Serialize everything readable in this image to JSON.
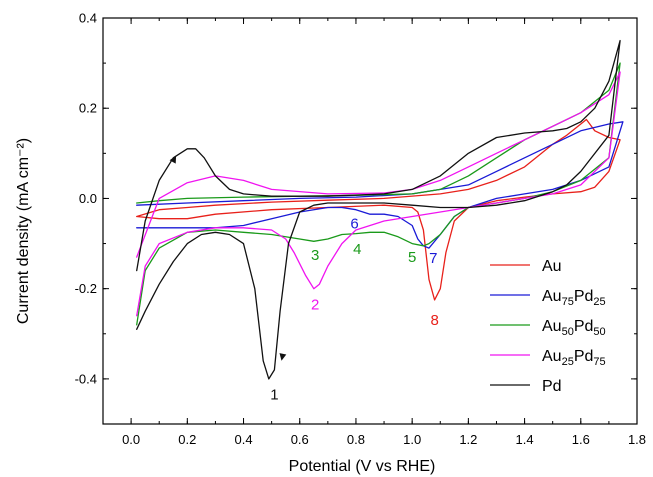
{
  "chart_data": {
    "type": "line",
    "xlabel": "Potential (V vs RHE)",
    "ylabel": "Current density (mA cm⁻²)",
    "xlim": [
      -0.1,
      1.8
    ],
    "ylim": [
      -0.5,
      0.4
    ],
    "xticks": [
      0.0,
      0.2,
      0.4,
      0.6,
      0.8,
      1.0,
      1.2,
      1.4,
      1.6,
      1.8
    ],
    "xtick_labels": [
      "0.0",
      "0.2",
      "0.4",
      "0.6",
      "0.8",
      "1.0",
      "1.2",
      "1.4",
      "1.6",
      "1.8"
    ],
    "yticks": [
      -0.4,
      -0.2,
      0.0,
      0.2,
      0.4
    ],
    "ytick_labels": [
      "-0.4",
      "-0.2",
      "0.0",
      "0.2",
      "0.4"
    ],
    "grid": false,
    "legend_position": "lower-right",
    "series": [
      {
        "name": "Au",
        "legend_base": "Au",
        "legend_sub1": "",
        "legend_mid": "",
        "legend_sub2": "",
        "color": "#e8211b",
        "x": [
          0.02,
          0.1,
          0.2,
          0.3,
          0.5,
          0.7,
          0.9,
          1.1,
          1.2,
          1.3,
          1.4,
          1.5,
          1.55,
          1.6,
          1.62,
          1.65,
          1.7,
          1.74,
          1.74,
          1.7,
          1.65,
          1.6,
          1.5,
          1.4,
          1.3,
          1.2,
          1.15,
          1.12,
          1.1,
          1.08,
          1.06,
          1.04,
          1.02,
          1.0,
          0.9,
          0.7,
          0.5,
          0.3,
          0.2,
          0.1,
          0.02
        ],
        "y": [
          -0.04,
          -0.025,
          -0.02,
          -0.015,
          -0.008,
          -0.004,
          0.0,
          0.01,
          0.02,
          0.04,
          0.07,
          0.12,
          0.14,
          0.165,
          0.175,
          0.15,
          0.135,
          0.13,
          0.13,
          0.06,
          0.025,
          0.015,
          0.01,
          0.003,
          -0.005,
          -0.02,
          -0.05,
          -0.12,
          -0.2,
          -0.225,
          -0.18,
          -0.07,
          -0.03,
          -0.02,
          -0.015,
          -0.02,
          -0.025,
          -0.035,
          -0.045,
          -0.045,
          -0.04
        ]
      },
      {
        "name": "Au75Pd25",
        "legend_base": "Au",
        "legend_sub1": "75",
        "legend_mid": "Pd",
        "legend_sub2": "25",
        "color": "#1a1ad6",
        "x": [
          0.02,
          0.2,
          0.4,
          0.6,
          0.8,
          1.0,
          1.2,
          1.3,
          1.4,
          1.5,
          1.6,
          1.7,
          1.75,
          1.75,
          1.7,
          1.6,
          1.5,
          1.4,
          1.3,
          1.2,
          1.15,
          1.1,
          1.06,
          1.04,
          1.02,
          1.0,
          0.95,
          0.9,
          0.85,
          0.8,
          0.75,
          0.7,
          0.6,
          0.5,
          0.4,
          0.3,
          0.2,
          0.1,
          0.02
        ],
        "y": [
          -0.015,
          -0.01,
          -0.005,
          0.0,
          0.003,
          0.01,
          0.03,
          0.06,
          0.09,
          0.12,
          0.15,
          0.165,
          0.17,
          0.17,
          0.07,
          0.04,
          0.02,
          0.01,
          0.0,
          -0.02,
          -0.04,
          -0.08,
          -0.11,
          -0.105,
          -0.09,
          -0.06,
          -0.04,
          -0.035,
          -0.035,
          -0.025,
          -0.02,
          -0.02,
          -0.03,
          -0.045,
          -0.06,
          -0.065,
          -0.065,
          -0.065,
          -0.065
        ]
      },
      {
        "name": "Au50Pd50",
        "legend_base": "Au",
        "legend_sub1": "50",
        "legend_mid": "Pd",
        "legend_sub2": "50",
        "color": "#1a9a1a",
        "x": [
          0.02,
          0.1,
          0.2,
          0.4,
          0.6,
          0.8,
          1.0,
          1.1,
          1.2,
          1.3,
          1.4,
          1.5,
          1.6,
          1.7,
          1.74,
          1.74,
          1.7,
          1.6,
          1.5,
          1.4,
          1.3,
          1.2,
          1.15,
          1.1,
          1.06,
          1.04,
          1.0,
          0.95,
          0.9,
          0.85,
          0.8,
          0.75,
          0.7,
          0.65,
          0.6,
          0.5,
          0.4,
          0.3,
          0.2,
          0.1,
          0.05,
          0.02
        ],
        "y": [
          -0.01,
          -0.005,
          0.0,
          0.003,
          0.005,
          0.007,
          0.01,
          0.02,
          0.05,
          0.09,
          0.13,
          0.16,
          0.19,
          0.24,
          0.3,
          0.3,
          0.09,
          0.04,
          0.015,
          0.0,
          -0.01,
          -0.02,
          -0.04,
          -0.08,
          -0.1,
          -0.105,
          -0.1,
          -0.085,
          -0.075,
          -0.075,
          -0.078,
          -0.08,
          -0.09,
          -0.095,
          -0.09,
          -0.08,
          -0.075,
          -0.07,
          -0.075,
          -0.11,
          -0.16,
          -0.28
        ]
      },
      {
        "name": "Au25Pd75",
        "legend_base": "Au",
        "legend_sub1": "25",
        "legend_mid": "Pd",
        "legend_sub2": "75",
        "color": "#f014f0",
        "x": [
          0.02,
          0.1,
          0.2,
          0.3,
          0.4,
          0.5,
          0.7,
          0.9,
          1.0,
          1.1,
          1.2,
          1.3,
          1.4,
          1.5,
          1.6,
          1.7,
          1.74,
          1.74,
          1.7,
          1.6,
          1.5,
          1.4,
          1.3,
          1.2,
          1.1,
          1.0,
          0.9,
          0.8,
          0.75,
          0.7,
          0.67,
          0.65,
          0.62,
          0.58,
          0.55,
          0.5,
          0.4,
          0.3,
          0.2,
          0.1,
          0.05,
          0.02
        ],
        "y": [
          -0.13,
          0.0,
          0.035,
          0.05,
          0.04,
          0.02,
          0.01,
          0.012,
          0.02,
          0.04,
          0.07,
          0.1,
          0.13,
          0.16,
          0.19,
          0.23,
          0.28,
          0.28,
          0.09,
          0.03,
          0.01,
          0.0,
          -0.01,
          -0.02,
          -0.03,
          -0.04,
          -0.05,
          -0.07,
          -0.1,
          -0.15,
          -0.19,
          -0.2,
          -0.17,
          -0.12,
          -0.09,
          -0.07,
          -0.065,
          -0.065,
          -0.075,
          -0.1,
          -0.15,
          -0.26
        ]
      },
      {
        "name": "Pd",
        "legend_base": "Pd",
        "legend_sub1": "",
        "legend_mid": "",
        "legend_sub2": "",
        "color": "#111111",
        "x": [
          0.02,
          0.05,
          0.1,
          0.15,
          0.2,
          0.23,
          0.26,
          0.3,
          0.35,
          0.4,
          0.5,
          0.7,
          0.9,
          1.0,
          1.1,
          1.2,
          1.3,
          1.4,
          1.5,
          1.55,
          1.6,
          1.65,
          1.7,
          1.74,
          1.74,
          1.7,
          1.6,
          1.55,
          1.5,
          1.4,
          1.3,
          1.2,
          1.1,
          1.0,
          0.9,
          0.8,
          0.7,
          0.65,
          0.6,
          0.56,
          0.53,
          0.51,
          0.49,
          0.47,
          0.44,
          0.4,
          0.35,
          0.3,
          0.25,
          0.2,
          0.15,
          0.1,
          0.05,
          0.02
        ],
        "y": [
          -0.16,
          -0.05,
          0.04,
          0.09,
          0.11,
          0.11,
          0.09,
          0.05,
          0.02,
          0.01,
          0.005,
          0.005,
          0.01,
          0.02,
          0.05,
          0.1,
          0.135,
          0.145,
          0.15,
          0.155,
          0.17,
          0.2,
          0.26,
          0.35,
          0.35,
          0.14,
          0.06,
          0.03,
          0.015,
          -0.005,
          -0.015,
          -0.02,
          -0.02,
          -0.015,
          -0.01,
          -0.01,
          -0.01,
          -0.015,
          -0.03,
          -0.1,
          -0.25,
          -0.38,
          -0.4,
          -0.36,
          -0.2,
          -0.1,
          -0.08,
          -0.075,
          -0.08,
          -0.1,
          -0.14,
          -0.19,
          -0.25,
          -0.29
        ]
      }
    ],
    "annotations": [
      {
        "text": "1",
        "x": 0.51,
        "y": -0.435,
        "color": "#111111"
      },
      {
        "text": "2",
        "x": 0.655,
        "y": -0.235,
        "color": "#f014f0"
      },
      {
        "text": "3",
        "x": 0.655,
        "y": -0.125,
        "color": "#1a9a1a"
      },
      {
        "text": "4",
        "x": 0.805,
        "y": -0.112,
        "color": "#1a9a1a"
      },
      {
        "text": "5",
        "x": 1.0,
        "y": -0.13,
        "color": "#1a9a1a"
      },
      {
        "text": "6",
        "x": 0.795,
        "y": -0.055,
        "color": "#1a1ad6"
      },
      {
        "text": "7",
        "x": 1.075,
        "y": -0.132,
        "color": "#1a1ad6"
      },
      {
        "text": "8",
        "x": 1.08,
        "y": -0.27,
        "color": "#e8211b"
      }
    ]
  }
}
